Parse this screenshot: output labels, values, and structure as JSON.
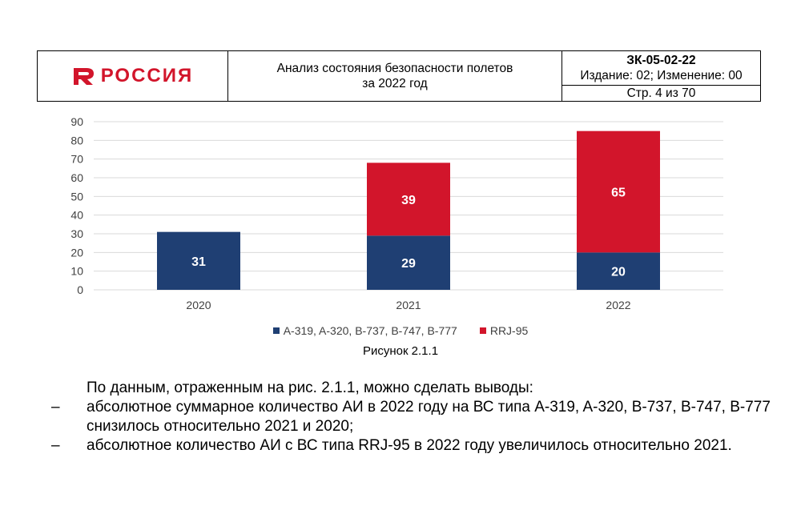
{
  "header": {
    "logo_text": "РОССИЯ",
    "title_line1": "Анализ состояния безопасности полетов",
    "title_line2": "за 2022 год",
    "doc_code": "ЗК-05-02-22",
    "edition": "Издание: 02; Изменение: 00",
    "page": "Стр. 4 из 70"
  },
  "colors": {
    "brand_red": "#d2152b",
    "series_blue": "#1f3f73",
    "series_red": "#d2152b"
  },
  "chart_data": {
    "type": "bar",
    "stacked": true,
    "categories": [
      "2020",
      "2021",
      "2022"
    ],
    "series": [
      {
        "name": "A-319, A-320, B-737, B-747, B-777",
        "values": [
          31,
          29,
          20
        ],
        "color": "#1f3f73"
      },
      {
        "name": "RRJ-95",
        "values": [
          0,
          39,
          65
        ],
        "color": "#d2152b"
      }
    ],
    "ylim": [
      0,
      90
    ],
    "yticks": [
      0,
      10,
      20,
      30,
      40,
      50,
      60,
      70,
      80,
      90
    ],
    "grid": true,
    "legend_position": "bottom"
  },
  "caption": "Рисунок 2.1.1",
  "body": {
    "intro": "По данным, отраженным на рис. 2.1.1, можно сделать выводы:",
    "bullets": [
      {
        "dash": "–",
        "text": "абсолютное суммарное количество АИ в 2022 году на ВС типа A-319, A-320, B-737, B-747, B-777 снизилось относительно 2021 и 2020;"
      },
      {
        "dash": "–",
        "text": "абсолютное количество АИ с ВС типа RRJ-95 в 2022 году увеличилось относительно 2021."
      }
    ]
  }
}
